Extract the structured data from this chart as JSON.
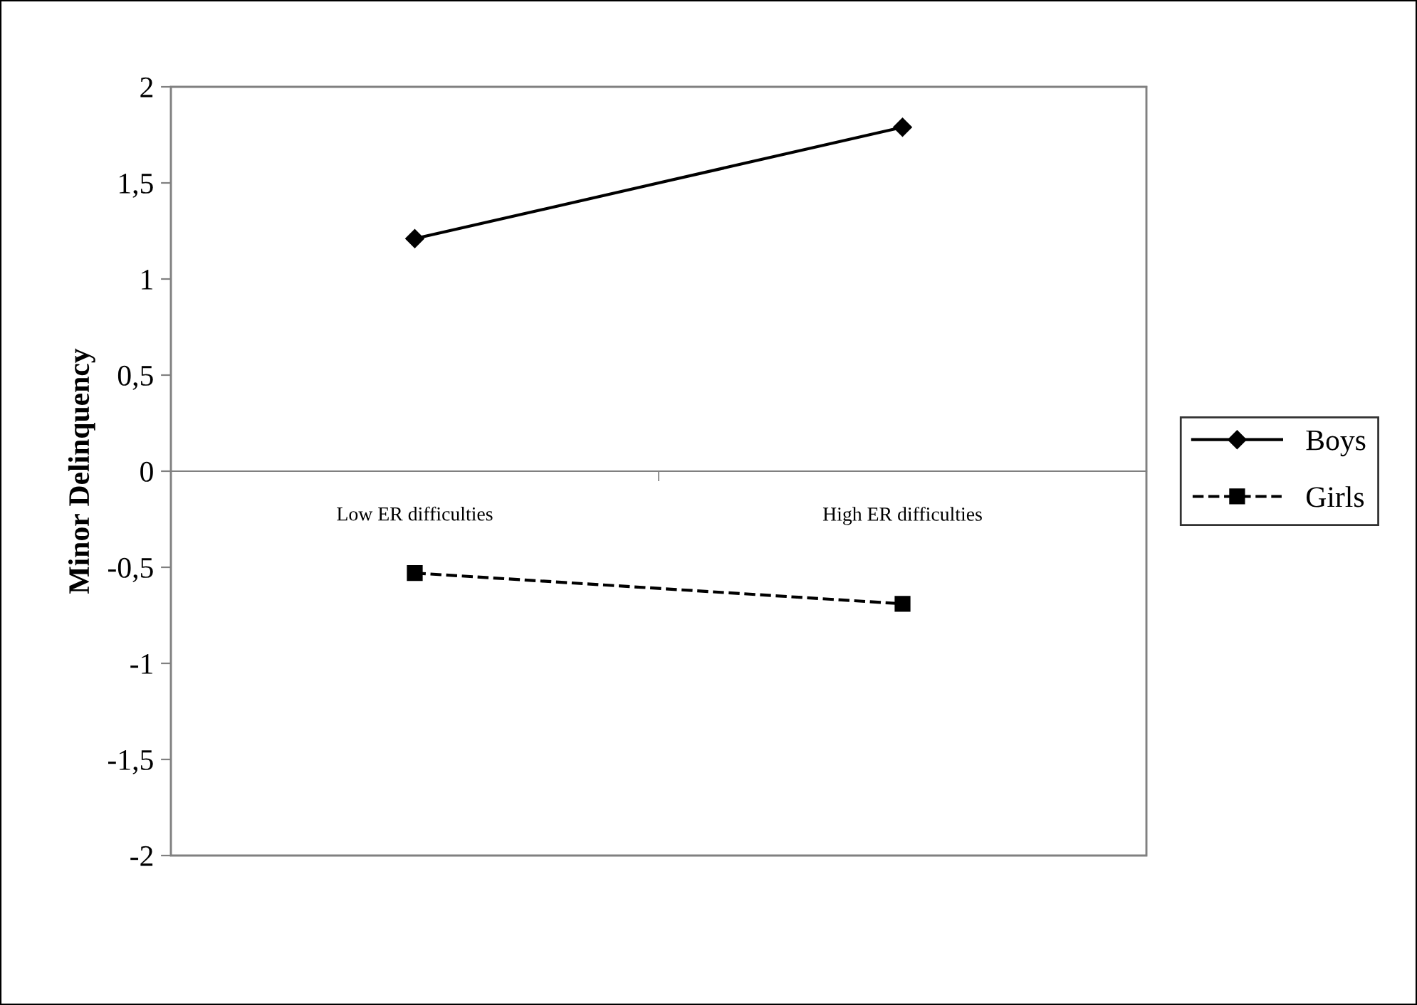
{
  "chart_data": {
    "type": "line",
    "ylabel": "Minor Delinquency",
    "categories": [
      "Low ER difficulties",
      "High ER difficulties"
    ],
    "series": [
      {
        "name": "Boys",
        "color": "#000000",
        "values": [
          1.21,
          1.79
        ],
        "marker": "diamond",
        "line_style": "solid"
      },
      {
        "name": "Girls",
        "color": "#000000",
        "values": [
          -0.53,
          -0.69
        ],
        "marker": "square",
        "line_style": "dashed"
      }
    ],
    "ylim": [
      -2,
      2
    ],
    "yticks": [
      {
        "value": -2,
        "label": "-2"
      },
      {
        "value": -1.5,
        "label": "-1,5"
      },
      {
        "value": -1,
        "label": "-1"
      },
      {
        "value": -0.5,
        "label": "-0,5"
      },
      0,
      {
        "value": 0.5,
        "label": "0,5"
      },
      1,
      {
        "value": 1.5,
        "label": "1,5"
      },
      2
    ],
    "grid": false,
    "legend": "right"
  }
}
